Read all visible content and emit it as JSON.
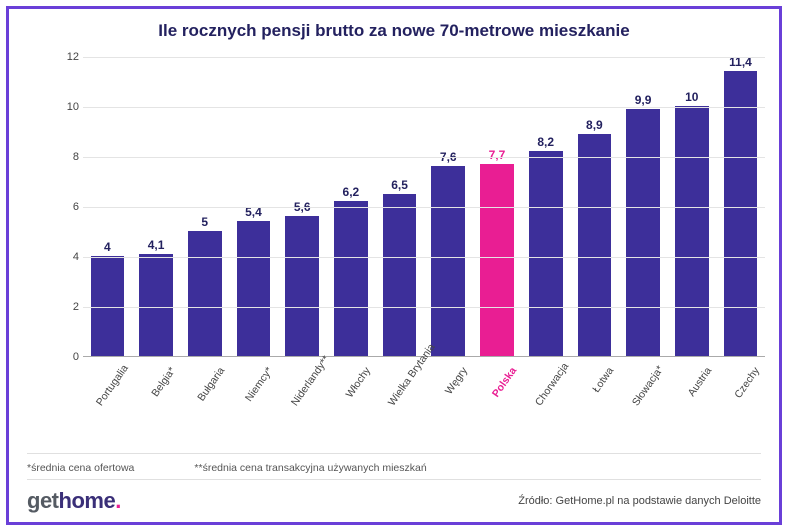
{
  "title": "Ile rocznych pensji brutto za nowe 70-metrowe mieszkanie",
  "chart": {
    "type": "bar",
    "ymax": 12,
    "ytick_step": 2,
    "grid_color": "#e4e4e4",
    "axis_label_color": "#444444",
    "bar_color": "#3d2f9a",
    "highlight_color": "#e91e93",
    "title_color": "#23215f",
    "value_label_fontsize": 12,
    "xlabel_fontsize": 10.5,
    "xlabel_rotation_deg": -55,
    "bars": [
      {
        "label": "Portugalia",
        "value": 4.0,
        "display": "4",
        "highlight": false
      },
      {
        "label": "Belgia*",
        "value": 4.1,
        "display": "4,1",
        "highlight": false
      },
      {
        "label": "Bułgaria",
        "value": 5.0,
        "display": "5",
        "highlight": false
      },
      {
        "label": "Niemcy*",
        "value": 5.4,
        "display": "5,4",
        "highlight": false
      },
      {
        "label": "Niderlandy**",
        "value": 5.6,
        "display": "5,6",
        "highlight": false
      },
      {
        "label": "Włochy",
        "value": 6.2,
        "display": "6,2",
        "highlight": false
      },
      {
        "label": "Wielka Brytania",
        "value": 6.5,
        "display": "6,5",
        "highlight": false
      },
      {
        "label": "Węgry",
        "value": 7.6,
        "display": "7,6",
        "highlight": false
      },
      {
        "label": "Polska",
        "value": 7.7,
        "display": "7,7",
        "highlight": true
      },
      {
        "label": "Chorwacja",
        "value": 8.2,
        "display": "8,2",
        "highlight": false
      },
      {
        "label": "Łotwa",
        "value": 8.9,
        "display": "8,9",
        "highlight": false
      },
      {
        "label": "Słowacja*",
        "value": 9.9,
        "display": "9,9",
        "highlight": false
      },
      {
        "label": "Austria",
        "value": 10.0,
        "display": "10",
        "highlight": false
      },
      {
        "label": "Czechy",
        "value": 11.4,
        "display": "11,4",
        "highlight": false
      }
    ]
  },
  "footnotes": {
    "note1": "*średnia cena ofertowa",
    "note2": "**średnia cena transakcyjna używanych mieszkań"
  },
  "logo": {
    "part1": "get",
    "part2": "home",
    "dot": "."
  },
  "source": "Źródło: GetHome.pl na podstawie danych Deloitte",
  "frame_border_color": "#6a3fd8"
}
